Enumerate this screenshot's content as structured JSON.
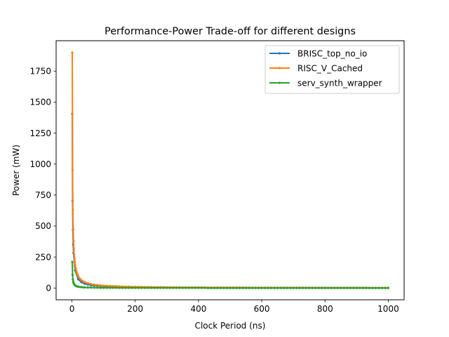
{
  "chart_data": {
    "type": "line",
    "title": "Performance-Power Trade-off for different designs",
    "xlabel": "Clock Period (ns)",
    "ylabel": "Power (mW)",
    "xlim": [
      -50,
      1050
    ],
    "ylim": [
      -95,
      1995
    ],
    "xticks": [
      0,
      200,
      400,
      600,
      800,
      1000
    ],
    "yticks": [
      0,
      250,
      500,
      750,
      1000,
      1250,
      1500,
      1750
    ],
    "grid": false,
    "legend_position": "top-right",
    "series": [
      {
        "name": "BRISC_top_no_io",
        "color": "#1f77b4",
        "x": [
          1,
          2,
          3,
          4,
          5,
          10,
          20,
          30,
          40,
          50,
          60,
          70,
          80,
          90,
          100,
          110,
          120,
          130,
          140,
          150,
          160,
          170,
          180,
          190,
          200,
          210,
          220,
          230,
          240,
          250,
          260,
          270,
          280,
          290,
          300,
          310,
          320,
          330,
          340,
          350,
          360,
          370,
          380,
          390,
          400,
          410,
          420,
          430,
          440,
          450,
          460,
          470,
          480,
          490,
          500,
          510,
          520,
          530,
          540,
          550,
          560,
          570,
          580,
          590,
          600,
          610,
          620,
          630,
          640,
          650,
          660,
          670,
          680,
          690,
          700,
          710,
          720,
          730,
          740,
          750,
          760,
          770,
          780,
          790,
          800,
          810,
          820,
          830,
          840,
          850,
          860,
          870,
          880,
          890,
          900,
          910,
          920,
          930,
          940,
          950,
          960,
          970,
          980,
          990,
          1000
        ],
        "values": [
          1405,
          703,
          469,
          352,
          281,
          141,
          70,
          47,
          35,
          28,
          23,
          20,
          18,
          16,
          14,
          13,
          12,
          11,
          10,
          9,
          9,
          8,
          8,
          7,
          7,
          7,
          6,
          6,
          6,
          6,
          5,
          5,
          5,
          5,
          5,
          5,
          4,
          4,
          4,
          4,
          4,
          4,
          4,
          4,
          4,
          3,
          3,
          3,
          3,
          3,
          3,
          3,
          3,
          3,
          3,
          3,
          3,
          3,
          3,
          3,
          3,
          2,
          2,
          2,
          2,
          2,
          2,
          2,
          2,
          2,
          2,
          2,
          2,
          2,
          2,
          2,
          2,
          2,
          2,
          2,
          2,
          2,
          2,
          2,
          2,
          2,
          2,
          2,
          2,
          2,
          2,
          2,
          2,
          2,
          2,
          2,
          2,
          2,
          1,
          1,
          1,
          1,
          1,
          1,
          1
        ]
      },
      {
        "name": "RISC_V_Cached",
        "color": "#ff7f0e",
        "x": [
          1,
          2,
          3,
          4,
          5,
          6,
          7,
          8,
          9,
          10,
          12,
          14,
          16,
          18,
          20,
          25,
          30,
          35,
          40,
          50,
          60,
          70,
          80,
          90,
          100,
          110,
          120,
          130,
          140,
          150,
          160,
          170,
          180,
          190,
          200,
          210,
          220,
          230,
          240,
          250,
          260,
          270,
          280,
          290,
          300,
          310,
          320,
          330,
          340,
          350,
          360,
          370,
          380,
          390,
          400,
          410,
          420,
          430,
          440,
          450,
          460,
          470,
          480,
          490,
          500,
          510,
          520,
          530,
          540,
          550,
          560,
          570,
          580,
          590,
          600,
          610,
          620,
          630,
          640,
          650,
          660,
          670,
          680,
          690,
          700,
          710,
          720,
          730,
          740,
          750,
          760,
          770,
          780,
          790,
          800,
          810,
          820,
          830,
          840,
          850,
          860,
          870,
          880,
          890,
          900,
          910,
          920,
          930,
          940,
          950,
          960,
          970,
          980,
          990,
          1000
        ],
        "values": [
          1900,
          950,
          633,
          475,
          380,
          317,
          271,
          238,
          211,
          190,
          158,
          136,
          119,
          106,
          95,
          76,
          63,
          54,
          48,
          38,
          32,
          27,
          24,
          21,
          19,
          17,
          16,
          15,
          14,
          13,
          12,
          11,
          11,
          10,
          10,
          9,
          9,
          8,
          8,
          8,
          7,
          7,
          7,
          7,
          6,
          6,
          6,
          6,
          6,
          5,
          5,
          5,
          5,
          5,
          5,
          5,
          5,
          4,
          4,
          4,
          4,
          4,
          4,
          4,
          4,
          4,
          4,
          4,
          4,
          3,
          3,
          3,
          3,
          3,
          3,
          3,
          3,
          3,
          3,
          3,
          3,
          3,
          3,
          3,
          3,
          3,
          3,
          3,
          3,
          3,
          2,
          2,
          2,
          2,
          2,
          2,
          2,
          2,
          2,
          2,
          2,
          2,
          2,
          2,
          2,
          2,
          2,
          2,
          2,
          2,
          2,
          2,
          2,
          2,
          2
        ]
      },
      {
        "name": "serv_synth_wrapper",
        "color": "#2ca02c",
        "x": [
          1,
          2,
          3,
          4,
          5,
          6,
          7,
          8,
          9,
          10,
          12,
          14,
          16,
          18,
          20,
          25,
          30,
          35,
          40,
          50,
          60,
          70,
          80,
          90,
          100,
          110,
          120,
          130,
          140,
          150,
          160,
          170,
          180,
          190,
          200,
          210,
          220,
          230,
          240,
          250,
          260,
          270,
          280,
          290,
          300,
          310,
          320,
          330,
          340,
          350,
          360,
          370,
          380,
          390,
          400,
          410,
          420,
          430,
          440,
          450,
          460,
          470,
          480,
          490,
          500,
          510,
          520,
          530,
          540,
          550,
          560,
          570,
          580,
          590,
          600,
          610,
          620,
          630,
          640,
          650,
          660,
          670,
          680,
          690,
          700,
          710,
          720,
          730,
          740,
          750,
          760,
          770,
          780,
          790,
          800,
          810,
          820,
          830,
          840,
          850,
          860,
          870,
          880,
          890,
          900,
          910,
          920,
          930,
          940,
          950,
          960,
          970,
          980,
          990,
          1000
        ],
        "values": [
          210,
          105,
          70,
          53,
          42,
          35,
          30,
          26,
          23,
          21,
          18,
          15,
          13,
          12,
          11,
          8,
          7,
          6,
          5,
          4,
          4,
          3,
          3,
          2,
          2,
          2,
          2,
          2,
          2,
          1,
          1,
          1,
          1,
          1,
          1,
          1,
          1,
          1,
          1,
          1,
          1,
          1,
          1,
          1,
          1,
          1,
          1,
          1,
          1,
          1,
          1,
          1,
          1,
          1,
          1,
          1,
          1,
          0,
          0,
          0,
          0,
          0,
          0,
          0,
          0,
          0,
          0,
          0,
          0,
          0,
          0,
          0,
          0,
          0,
          0,
          0,
          0,
          0,
          0,
          0,
          0,
          0,
          0,
          0,
          0,
          0,
          0,
          0,
          0,
          0,
          0,
          0,
          0,
          0,
          0,
          0,
          0,
          0,
          0,
          0,
          0,
          0,
          0,
          0,
          0,
          0,
          0,
          0,
          0,
          0,
          0,
          0,
          0,
          0,
          0
        ]
      }
    ]
  }
}
